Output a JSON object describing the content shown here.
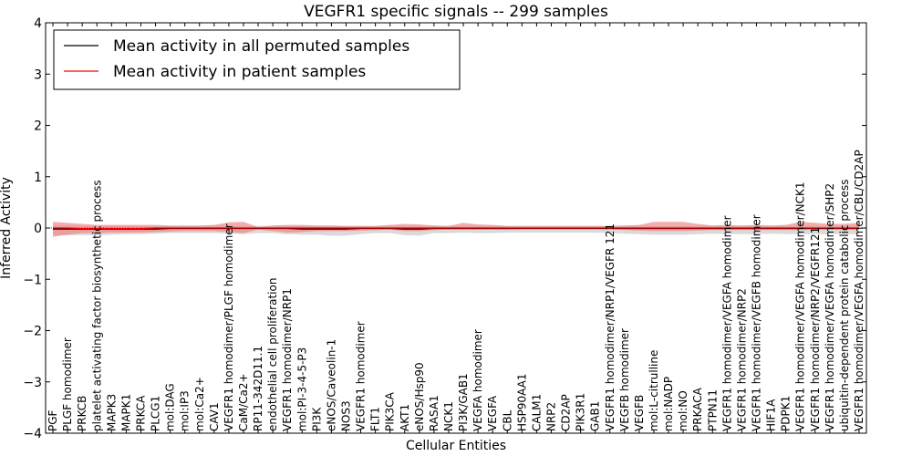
{
  "chart_data": {
    "type": "line",
    "title": "VEGFR1 specific signals -- 299 samples",
    "xlabel": "Cellular Entities",
    "ylabel": "Inferred Activity",
    "ylim": [
      -4,
      4
    ],
    "yticks": [
      -4,
      -3,
      -2,
      -1,
      0,
      1,
      2,
      3,
      4
    ],
    "grid": false,
    "legend_position": "top-left",
    "categories": [
      "PGF",
      "PLGF homodimer",
      "PRKCB",
      "platelet activating factor biosynthetic process",
      "MAPK3",
      "MAPK1",
      "PRKCA",
      "PLCG1",
      "mol:DAG",
      "mol:IP3",
      "mol:Ca2+",
      "CAV1",
      "VEGFR1 homodimer/PLGF homodimer",
      "CaM/Ca2+",
      "RP11-342D11.1",
      "endothelial cell proliferation",
      "VEGFR1 homodimer/NRP1",
      "mol:PI-3-4-5-P3",
      "PI3K",
      "eNOS/Caveolin-1",
      "NOS3",
      "VEGFR1 homodimer",
      "FLT1",
      "PIK3CA",
      "AKT1",
      "eNOS/Hsp90",
      "RASA1",
      "NCK1",
      "PI3K/GAB1",
      "VEGFA homodimer",
      "VEGFA",
      "CBL",
      "HSP90AA1",
      "CALM1",
      "NRP2",
      "CD2AP",
      "PIK3R1",
      "GAB1",
      "VEGFR1 homodimer/NRP1/VEGFR 121",
      "VEGFB homodimer",
      "VEGFB",
      "mol:L-citrulline",
      "mol:NADP",
      "mol:NO",
      "PRKACA",
      "PTPN11",
      "VEGFR1 homodimer/VEGFA homodimer",
      "VEGFR1 homodimer/NRP2",
      "VEGFR1 homodimer/VEGFB homodimer",
      "HIF1A",
      "PDPK1",
      "VEGFR1 homodimer/VEGFA homodimer/NCK1",
      "VEGFR1 homodimer/NRP2/VEGFR121",
      "VEGFR1 homodimer/VEGFA homodimer/SHP2",
      "ubiquitin-dependent protein catabolic process",
      "VEGFR1 homodimer/VEGFA homodimer/CBL/CD2AP"
    ],
    "series": [
      {
        "name": "Mean activity in all permuted samples",
        "color": "#000000",
        "band_color": "#bbbbbb",
        "values": [
          -0.02,
          -0.02,
          -0.02,
          -0.02,
          -0.02,
          -0.02,
          -0.02,
          -0.02,
          -0.01,
          -0.01,
          -0.01,
          -0.01,
          -0.01,
          -0.01,
          -0.01,
          -0.01,
          -0.01,
          -0.02,
          -0.02,
          -0.02,
          -0.02,
          -0.01,
          -0.01,
          -0.01,
          -0.02,
          -0.02,
          -0.01,
          -0.01,
          -0.01,
          -0.01,
          -0.01,
          -0.01,
          -0.01,
          -0.01,
          -0.01,
          -0.01,
          -0.01,
          -0.01,
          -0.01,
          -0.01,
          -0.01,
          -0.01,
          -0.01,
          -0.01,
          -0.01,
          -0.01,
          -0.01,
          -0.01,
          -0.01,
          -0.01,
          -0.01,
          -0.01,
          -0.01,
          -0.01,
          -0.01,
          -0.01
        ],
        "band_low": [
          -0.14,
          -0.14,
          -0.14,
          -0.14,
          -0.13,
          -0.12,
          -0.12,
          -0.11,
          -0.1,
          -0.1,
          -0.1,
          -0.1,
          -0.11,
          -0.12,
          -0.1,
          -0.1,
          -0.12,
          -0.13,
          -0.13,
          -0.15,
          -0.15,
          -0.12,
          -0.1,
          -0.1,
          -0.14,
          -0.15,
          -0.1,
          -0.1,
          -0.09,
          -0.1,
          -0.1,
          -0.09,
          -0.09,
          -0.09,
          -0.09,
          -0.09,
          -0.09,
          -0.09,
          -0.1,
          -0.11,
          -0.12,
          -0.13,
          -0.13,
          -0.13,
          -0.12,
          -0.11,
          -0.12,
          -0.12,
          -0.12,
          -0.11,
          -0.12,
          -0.12,
          -0.12,
          -0.12,
          -0.12,
          -0.12
        ],
        "band_high": [
          0.05,
          0.05,
          0.04,
          0.04,
          0.04,
          0.04,
          0.04,
          0.04,
          0.04,
          0.04,
          0.04,
          0.04,
          0.04,
          0.04,
          0.04,
          0.04,
          0.04,
          0.04,
          0.04,
          0.04,
          0.04,
          0.04,
          0.04,
          0.04,
          0.04,
          0.04,
          0.04,
          0.04,
          0.04,
          0.04,
          0.04,
          0.04,
          0.04,
          0.04,
          0.04,
          0.04,
          0.04,
          0.04,
          0.04,
          0.04,
          0.04,
          0.04,
          0.04,
          0.04,
          0.04,
          0.04,
          0.04,
          0.04,
          0.04,
          0.04,
          0.04,
          0.04,
          0.04,
          0.04,
          0.04,
          0.04
        ]
      },
      {
        "name": "Mean activity in patient samples",
        "color": "#ff0000",
        "band_color": "#f08080",
        "values": [
          0.0,
          0.0,
          -0.01,
          -0.01,
          -0.01,
          -0.01,
          -0.01,
          0.0,
          0.0,
          0.0,
          0.0,
          0.0,
          0.0,
          0.0,
          0.0,
          0.0,
          0.0,
          0.0,
          0.0,
          0.0,
          0.0,
          0.0,
          0.0,
          0.0,
          0.0,
          0.0,
          0.0,
          0.0,
          0.0,
          0.0,
          0.0,
          0.0,
          0.0,
          0.0,
          0.0,
          0.0,
          0.0,
          0.0,
          0.0,
          0.0,
          0.0,
          0.0,
          0.0,
          0.0,
          0.0,
          0.0,
          0.0,
          0.0,
          0.0,
          0.0,
          0.0,
          0.0,
          0.0,
          0.0,
          0.0,
          0.0
        ],
        "band_low": [
          -0.17,
          -0.13,
          -0.1,
          -0.1,
          -0.09,
          -0.09,
          -0.09,
          -0.08,
          -0.07,
          -0.06,
          -0.06,
          -0.06,
          -0.08,
          -0.1,
          -0.03,
          -0.06,
          -0.09,
          -0.08,
          -0.06,
          -0.06,
          -0.06,
          -0.05,
          -0.04,
          -0.03,
          -0.06,
          -0.06,
          -0.04,
          -0.03,
          -0.03,
          -0.03,
          -0.03,
          -0.03,
          -0.02,
          -0.02,
          -0.02,
          -0.02,
          -0.02,
          -0.02,
          -0.02,
          -0.04,
          -0.05,
          -0.06,
          -0.06,
          -0.06,
          -0.05,
          -0.04,
          -0.04,
          -0.04,
          -0.04,
          -0.04,
          -0.04,
          -0.04,
          -0.03,
          -0.03,
          -0.03,
          -0.03
        ],
        "band_high": [
          0.12,
          0.1,
          0.08,
          0.06,
          0.06,
          0.06,
          0.06,
          0.06,
          0.05,
          0.05,
          0.05,
          0.06,
          0.11,
          0.12,
          0.02,
          0.05,
          0.06,
          0.06,
          0.05,
          0.05,
          0.04,
          0.04,
          0.04,
          0.06,
          0.08,
          0.07,
          0.05,
          0.04,
          0.1,
          0.07,
          0.06,
          0.04,
          0.04,
          0.04,
          0.04,
          0.04,
          0.04,
          0.04,
          0.04,
          0.05,
          0.06,
          0.12,
          0.12,
          0.12,
          0.08,
          0.05,
          0.06,
          0.05,
          0.06,
          0.05,
          0.06,
          0.12,
          0.1,
          0.08,
          0.08,
          0.1
        ]
      }
    ]
  }
}
